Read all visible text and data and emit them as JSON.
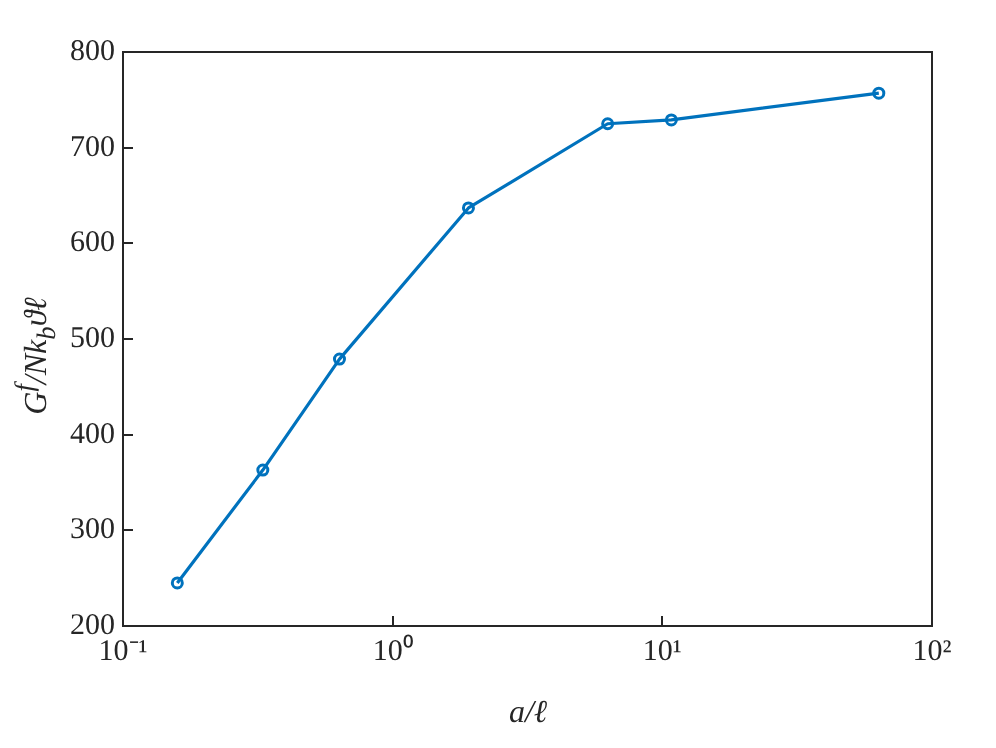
{
  "chart_data": {
    "type": "line",
    "xlabel": "a/ℓ",
    "ylabel": "G$^{f}$/Nk$_{b}$ϑℓ",
    "x": [
      0.159,
      0.33,
      0.635,
      1.91,
      6.27,
      10.8,
      63.5
    ],
    "series": [
      {
        "color": "#0072bd",
        "values": [
          245,
          363,
          479,
          637,
          725,
          729,
          757
        ]
      }
    ],
    "log": "x",
    "xlim": [
      0.1,
      100
    ],
    "xticks": [
      {
        "value": 0.1,
        "label": "10⁻¹"
      },
      {
        "value": 1,
        "label": "10⁰"
      },
      {
        "value": 10,
        "label": "10¹"
      },
      {
        "value": 100,
        "label": "10²"
      }
    ],
    "ylim": [
      200,
      800
    ],
    "yticks": [
      200,
      300,
      400,
      500,
      600,
      700,
      800
    ],
    "grid": false,
    "legend": false,
    "marker": "circle",
    "line_style": "solid"
  }
}
